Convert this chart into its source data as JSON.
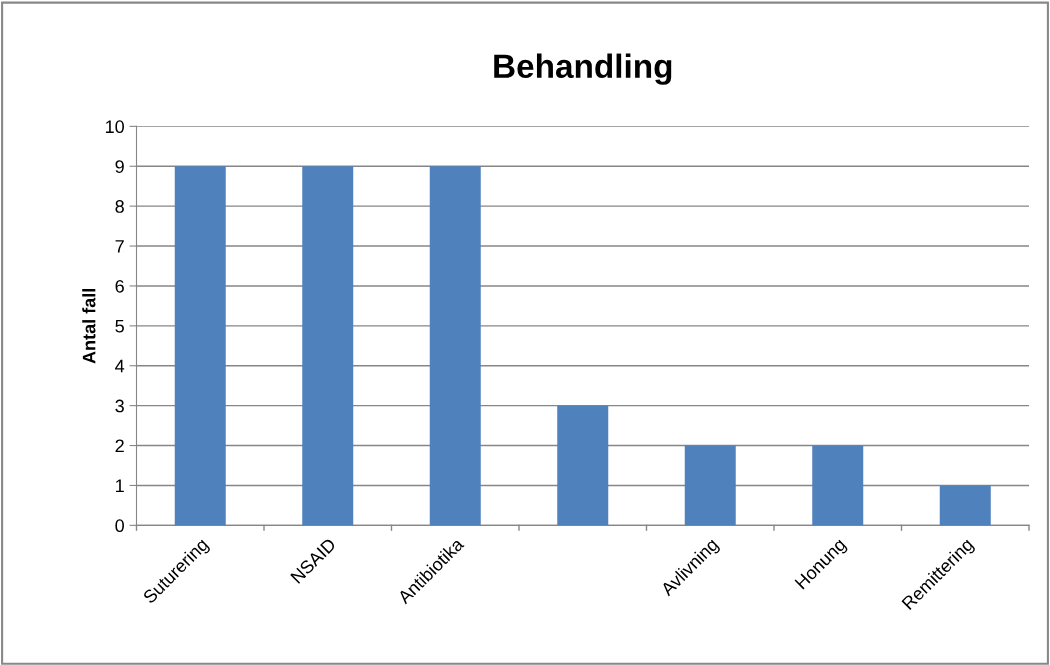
{
  "chart_data": {
    "type": "bar",
    "title": "Behandling",
    "ylabel": "Antal fall",
    "categories": [
      "Suturering",
      "NSAID",
      "Antibiotika",
      null,
      "Avlivning",
      "Honung",
      "Remittering"
    ],
    "values": [
      9,
      9,
      9,
      3,
      2,
      2,
      1
    ],
    "color": "#4f81bd",
    "ylim": [
      0,
      10
    ],
    "yticks": [
      0,
      1,
      2,
      3,
      4,
      5,
      6,
      7,
      8,
      9,
      10
    ],
    "grid": "y",
    "legend": false
  }
}
